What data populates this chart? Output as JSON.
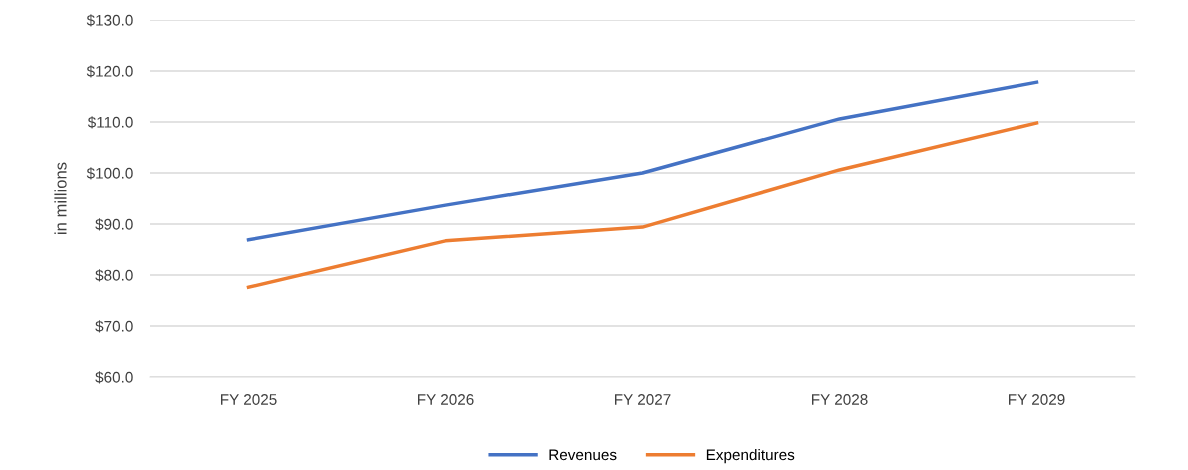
{
  "chart_data": {
    "type": "line",
    "ylabel": "in millions",
    "categories": [
      "FY 2025",
      "FY 2026",
      "FY 2027",
      "FY 2028",
      "FY 2029"
    ],
    "series": [
      {
        "name": "Revenues",
        "color": "#4472c4",
        "values": [
          86.9,
          93.7,
          100.0,
          110.6,
          117.8
        ]
      },
      {
        "name": "Expenditures",
        "color": "#ed7d31",
        "values": [
          77.6,
          86.7,
          89.4,
          100.6,
          109.8
        ]
      }
    ],
    "ylim": [
      60,
      130
    ],
    "yticks": [
      {
        "value": 60,
        "label": "$60.0"
      },
      {
        "value": 70,
        "label": "$70.0"
      },
      {
        "value": 80,
        "label": "$80.0"
      },
      {
        "value": 90,
        "label": "$90.0"
      },
      {
        "value": 100,
        "label": "$100.0"
      },
      {
        "value": 110,
        "label": "$110.0"
      },
      {
        "value": 120,
        "label": "$120.0"
      },
      {
        "value": 130,
        "label": "$130.0"
      }
    ],
    "grid": "y",
    "legend": "bottom",
    "marker": "none",
    "line_style": "solid"
  }
}
